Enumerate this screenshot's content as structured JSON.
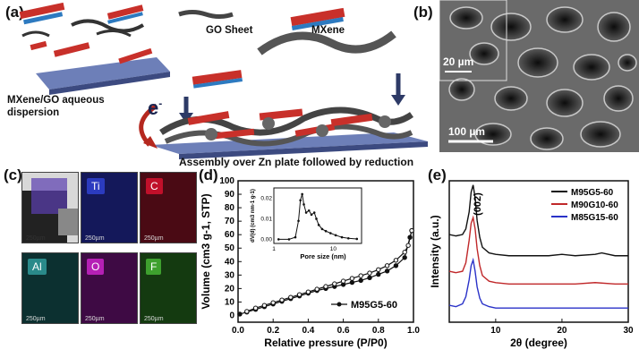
{
  "panel_a": {
    "label": "(a)",
    "go_sheet": "GO Sheet",
    "mxene": "MXene",
    "dispersion_line1": "MXene/GO aqueous",
    "dispersion_line2": "dispersion",
    "electron": "e",
    "electron_sup": "-",
    "caption": "Assembly over Zn plate followed by reduction"
  },
  "panel_b": {
    "label": "(b)",
    "scale_inset": "20 µm",
    "scale_main": "100 µm"
  },
  "panel_c": {
    "label": "(c)",
    "maps": [
      {
        "label": "Ti",
        "color": "#2b3bbf",
        "scale": "250µm"
      },
      {
        "label": "C",
        "color": "#c0102a",
        "scale": "250µm"
      },
      {
        "label": "Al",
        "color": "#2a8a8a",
        "scale": "250µm"
      },
      {
        "label": "O",
        "color": "#b520b5",
        "scale": "250µm"
      },
      {
        "label": "F",
        "color": "#3ea02e",
        "scale": "250µm"
      }
    ],
    "overview_scale": "250µm"
  },
  "panel_d": {
    "label": "(d)",
    "chart_data": {
      "type": "line",
      "xlabel": "Relative pressure (P/P0)",
      "ylabel": "Volume (cm3 g-1, STP)",
      "xlim": [
        0,
        1.0
      ],
      "ylim": [
        -5,
        100
      ],
      "xticks": [
        "0.0",
        "0.2",
        "0.4",
        "0.6",
        "0.8",
        "1.0"
      ],
      "yticks": [
        "0",
        "10",
        "20",
        "30",
        "40",
        "50",
        "60",
        "70",
        "80",
        "90",
        "100"
      ],
      "legend": "M95G5-60",
      "legend_position": "bottom-right",
      "series": [
        {
          "name": "M95G5-60 adsorption",
          "x": [
            0.01,
            0.05,
            0.1,
            0.15,
            0.2,
            0.25,
            0.3,
            0.35,
            0.4,
            0.45,
            0.5,
            0.55,
            0.6,
            0.65,
            0.7,
            0.75,
            0.8,
            0.85,
            0.9,
            0.95,
            0.98,
            0.99
          ],
          "y": [
            1,
            2.5,
            4.5,
            6.5,
            8.5,
            10.5,
            12.5,
            14.5,
            16.5,
            18.5,
            20,
            21.5,
            23,
            24.5,
            26,
            28,
            30.5,
            33,
            37,
            43,
            58,
            63
          ]
        },
        {
          "name": "M95G5-60 desorption",
          "x": [
            0.99,
            0.97,
            0.95,
            0.9,
            0.85,
            0.8,
            0.75,
            0.7,
            0.65,
            0.6,
            0.55,
            0.5,
            0.45,
            0.4,
            0.35,
            0.3,
            0.25,
            0.2,
            0.15,
            0.1,
            0.05
          ],
          "y": [
            63,
            52,
            47,
            41,
            37,
            34,
            31.5,
            29.5,
            27.5,
            25.5,
            23.5,
            21.5,
            19.5,
            17.5,
            15.5,
            13.5,
            11.5,
            9.5,
            7.5,
            5.5,
            3
          ]
        }
      ],
      "inset": {
        "type": "line",
        "xlabel": "Pore size (nm)",
        "ylabel": "dV(d) (cm3 nm-1 g-1)",
        "xscale": "log",
        "xlim": [
          1,
          30
        ],
        "ylim": [
          -0.002,
          0.025
        ],
        "xticks": [
          "1",
          "10"
        ],
        "yticks": [
          "0.00",
          "0.01",
          "0.02"
        ],
        "x": [
          1.2,
          1.8,
          2.3,
          2.6,
          2.8,
          3.0,
          3.2,
          3.5,
          3.9,
          4.3,
          4.8,
          5.2,
          5.7,
          6.5,
          7.5,
          9,
          11,
          14,
          18,
          25
        ],
        "y": [
          0,
          0,
          0.001,
          0.009,
          0.019,
          0.022,
          0.017,
          0.013,
          0.014,
          0.012,
          0.013,
          0.01,
          0.007,
          0.005,
          0.004,
          0.003,
          0.002,
          0.001,
          0.0005,
          0.0002
        ]
      }
    }
  },
  "panel_e": {
    "label": "(e)",
    "chart_data": {
      "type": "line",
      "xlabel": "2θ (degree)",
      "ylabel": "Intensity (a.u.)",
      "xlim": [
        3,
        30
      ],
      "xticks": [
        "10",
        "20",
        "30"
      ],
      "peak_label": "(002)",
      "legend_position": "top-right",
      "series": [
        {
          "name": "M95G5-60",
          "color": "#111111",
          "x": [
            3,
            4,
            5,
            5.5,
            6,
            6.3,
            6.6,
            6.9,
            7.2,
            7.6,
            8,
            9,
            10,
            12,
            15,
            18,
            20,
            22,
            25,
            26,
            28,
            30
          ],
          "y": [
            0.62,
            0.61,
            0.62,
            0.66,
            0.78,
            0.92,
            0.97,
            0.88,
            0.72,
            0.6,
            0.53,
            0.49,
            0.48,
            0.47,
            0.47,
            0.47,
            0.48,
            0.47,
            0.48,
            0.49,
            0.47,
            0.47
          ]
        },
        {
          "name": "M90G10-60",
          "color": "#c0282a",
          "x": [
            3,
            4,
            5,
            5.5,
            6,
            6.3,
            6.6,
            6.9,
            7.2,
            7.6,
            8,
            9,
            10,
            12,
            15,
            18,
            20,
            22,
            25,
            28,
            30
          ],
          "y": [
            0.36,
            0.35,
            0.36,
            0.42,
            0.58,
            0.7,
            0.74,
            0.66,
            0.52,
            0.4,
            0.33,
            0.29,
            0.28,
            0.27,
            0.27,
            0.27,
            0.27,
            0.27,
            0.28,
            0.27,
            0.27
          ]
        },
        {
          "name": "M85G15-60",
          "color": "#2a32c8",
          "x": [
            3,
            4,
            5,
            5.5,
            6,
            6.3,
            6.6,
            6.9,
            7.2,
            7.6,
            8,
            9,
            10,
            12,
            15,
            18,
            20,
            22,
            25,
            28,
            30
          ],
          "y": [
            0.12,
            0.11,
            0.13,
            0.18,
            0.3,
            0.4,
            0.44,
            0.36,
            0.25,
            0.17,
            0.13,
            0.11,
            0.1,
            0.1,
            0.1,
            0.1,
            0.1,
            0.1,
            0.1,
            0.1,
            0.1
          ]
        }
      ]
    }
  }
}
